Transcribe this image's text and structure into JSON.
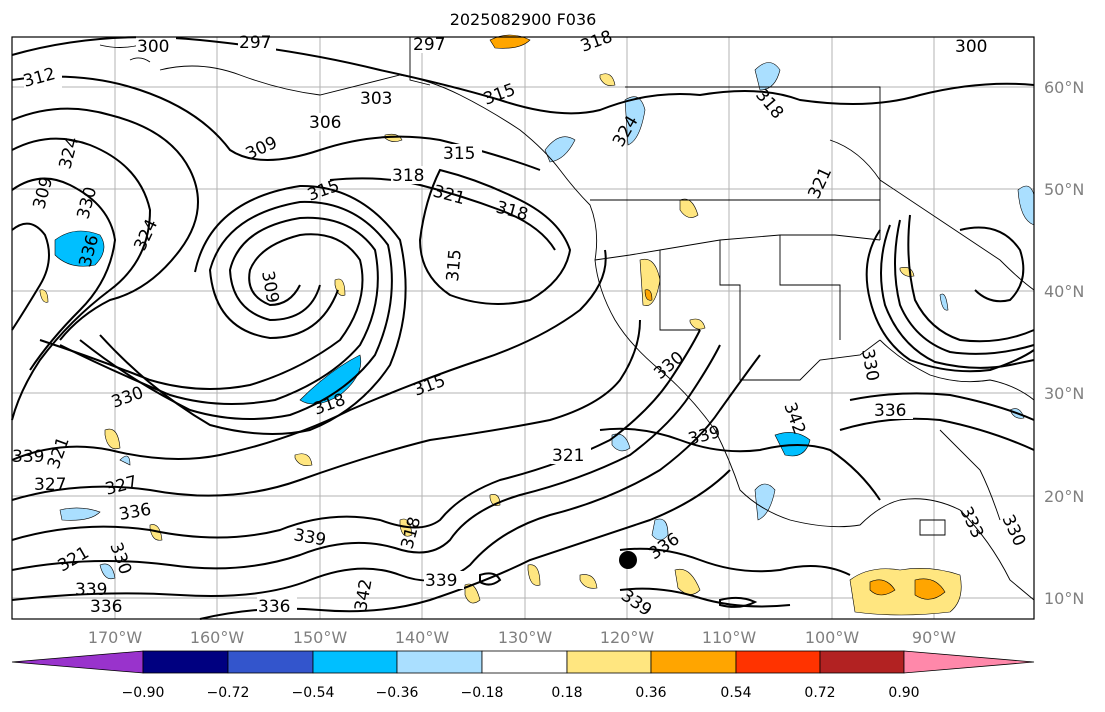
{
  "title": "2025082900 F036",
  "map": {
    "lon_labels": [
      "170°W",
      "160°W",
      "150°W",
      "140°W",
      "130°W",
      "120°W",
      "110°W",
      "100°W",
      "90°W"
    ],
    "lat_labels": [
      "60°N",
      "50°N",
      "40°N",
      "30°N",
      "20°N",
      "10°N"
    ],
    "grid": true,
    "marker": "filled-black-circle"
  },
  "contour_labels": [
    "300",
    "297",
    "297",
    "318",
    "300",
    "312",
    "303",
    "315",
    "306",
    "309",
    "315",
    "318",
    "321",
    "318",
    "315",
    "324",
    "324",
    "318",
    "321",
    "309",
    "330",
    "336",
    "324",
    "309",
    "315",
    "330",
    "318",
    "315",
    "330",
    "342",
    "336",
    "321",
    "339",
    "321",
    "327",
    "327",
    "336",
    "339",
    "321",
    "336",
    "330",
    "333",
    "330",
    "318",
    "339",
    "342",
    "339",
    "336",
    "336",
    "339",
    "330",
    "339"
  ],
  "colorbar": {
    "ticks": [
      "−0.90",
      "−0.72",
      "−0.54",
      "−0.36",
      "−0.18",
      "0.18",
      "0.36",
      "0.54",
      "0.72",
      "0.90"
    ],
    "colors": [
      "#9933cc",
      "#000080",
      "#3355cc",
      "#00bfff",
      "#aadfff",
      "#ffffff",
      "#ffe680",
      "#ffa500",
      "#ff3300",
      "#b22222",
      "#ff88aa"
    ]
  }
}
